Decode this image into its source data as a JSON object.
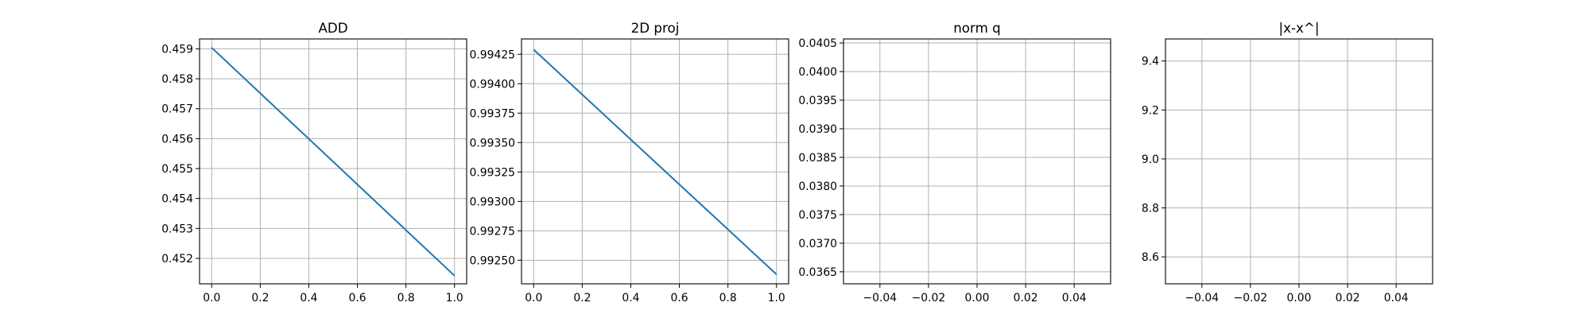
{
  "figure": {
    "background": "#ffffff"
  },
  "chart_data": [
    {
      "type": "line",
      "title": "ADD",
      "xlabel": "",
      "ylabel": "",
      "xlim": [
        -0.05,
        1.05
      ],
      "ylim": [
        0.45115,
        0.45933
      ],
      "xticks": [
        0.0,
        0.2,
        0.4,
        0.6,
        0.8,
        1.0
      ],
      "xtick_labels": [
        "0.0",
        "0.2",
        "0.4",
        "0.6",
        "0.8",
        "1.0"
      ],
      "yticks": [
        0.452,
        0.453,
        0.454,
        0.455,
        0.456,
        0.457,
        0.458,
        0.459
      ],
      "ytick_labels": [
        "0.452",
        "0.453",
        "0.454",
        "0.455",
        "0.456",
        "0.457",
        "0.458",
        "0.459"
      ],
      "grid": true,
      "series": [
        {
          "color": "#1f77b4",
          "x": [
            0.0,
            1.0
          ],
          "y": [
            0.45904,
            0.45142
          ]
        }
      ]
    },
    {
      "type": "line",
      "title": "2D proj",
      "xlabel": "",
      "ylabel": "",
      "xlim": [
        -0.05,
        1.05
      ],
      "ylim": [
        0.9923,
        0.99438
      ],
      "xticks": [
        0.0,
        0.2,
        0.4,
        0.6,
        0.8,
        1.0
      ],
      "xtick_labels": [
        "0.0",
        "0.2",
        "0.4",
        "0.6",
        "0.8",
        "1.0"
      ],
      "yticks": [
        0.9925,
        0.99275,
        0.993,
        0.99325,
        0.9935,
        0.99375,
        0.994,
        0.99425
      ],
      "ytick_labels": [
        "0.99250",
        "0.99275",
        "0.99300",
        "0.99325",
        "0.99350",
        "0.99375",
        "0.99400",
        "0.99425"
      ],
      "grid": true,
      "series": [
        {
          "color": "#1f77b4",
          "x": [
            0.0,
            1.0
          ],
          "y": [
            0.99429,
            0.99238
          ]
        }
      ]
    },
    {
      "type": "line",
      "title": "norm q",
      "xlabel": "",
      "ylabel": "",
      "xlim": [
        -0.055,
        0.055
      ],
      "ylim": [
        0.03629,
        0.04057
      ],
      "xticks": [
        -0.04,
        -0.02,
        0.0,
        0.02,
        0.04
      ],
      "xtick_labels": [
        "−0.04",
        "−0.02",
        "0.00",
        "0.02",
        "0.04"
      ],
      "yticks": [
        0.0365,
        0.037,
        0.0375,
        0.038,
        0.0385,
        0.039,
        0.0395,
        0.04,
        0.0405
      ],
      "ytick_labels": [
        "0.0365",
        "0.0370",
        "0.0375",
        "0.0380",
        "0.0385",
        "0.0390",
        "0.0395",
        "0.0400",
        "0.0405"
      ],
      "grid": true,
      "series": []
    },
    {
      "type": "line",
      "title": "|x-x^|",
      "xlabel": "",
      "ylabel": "",
      "xlim": [
        -0.055,
        0.055
      ],
      "ylim": [
        8.49,
        9.49
      ],
      "xticks": [
        -0.04,
        -0.02,
        0.0,
        0.02,
        0.04
      ],
      "xtick_labels": [
        "−0.04",
        "−0.02",
        "0.00",
        "0.02",
        "0.04"
      ],
      "yticks": [
        8.6,
        8.8,
        9.0,
        9.2,
        9.4
      ],
      "ytick_labels": [
        "8.6",
        "8.8",
        "9.0",
        "9.2",
        "9.4"
      ],
      "grid": true,
      "series": []
    }
  ]
}
